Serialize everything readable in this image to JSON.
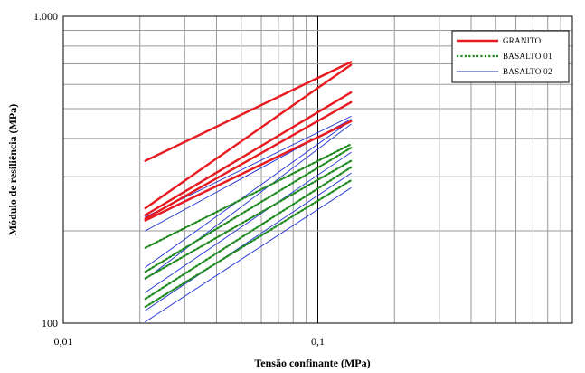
{
  "chart_data": {
    "type": "line",
    "title": "",
    "xlabel": "Tensão confinante (MPa)",
    "ylabel": "Módulo de resiliência (MPa)",
    "x_scale": "log",
    "y_scale": "log",
    "xlim": [
      0.01,
      1
    ],
    "ylim": [
      100,
      1000
    ],
    "x_ticks": [
      {
        "value": 0.01,
        "label": "0,01"
      },
      {
        "value": 0.1,
        "label": "0,1"
      }
    ],
    "y_ticks": [
      {
        "value": 100,
        "label": "100"
      },
      {
        "value": 1000,
        "label": "1.000"
      }
    ],
    "grid": true,
    "legend_position": "top-right",
    "legend": [
      {
        "name": "GRANITO",
        "color": "#e8191f",
        "style": "solid-thick"
      },
      {
        "name": "BASALTO 01",
        "color": "#1e8a1e",
        "style": "dotted"
      },
      {
        "name": "BASALTO 02",
        "color": "#1f2fd6",
        "style": "solid-thin"
      }
    ],
    "series": [
      {
        "group": "GRANITO",
        "x": [
          0.021,
          0.135
        ],
        "y": [
          338,
          710
        ]
      },
      {
        "group": "GRANITO",
        "x": [
          0.021,
          0.135
        ],
        "y": [
          237,
          695
        ]
      },
      {
        "group": "GRANITO",
        "x": [
          0.021,
          0.135
        ],
        "y": [
          225,
          565
        ]
      },
      {
        "group": "GRANITO",
        "x": [
          0.021,
          0.135
        ],
        "y": [
          219,
          525
        ]
      },
      {
        "group": "GRANITO",
        "x": [
          0.021,
          0.135
        ],
        "y": [
          216,
          455
        ]
      },
      {
        "group": "BASALTO 01",
        "x": [
          0.021,
          0.135
        ],
        "y": [
          176,
          383
        ]
      },
      {
        "group": "BASALTO 01",
        "x": [
          0.021,
          0.135
        ],
        "y": [
          147,
          373
        ]
      },
      {
        "group": "BASALTO 01",
        "x": [
          0.021,
          0.135
        ],
        "y": [
          140,
          338
        ]
      },
      {
        "group": "BASALTO 01",
        "x": [
          0.021,
          0.135
        ],
        "y": [
          120,
          322
        ]
      },
      {
        "group": "BASALTO 01",
        "x": [
          0.021,
          0.135
        ],
        "y": [
          113,
          292
        ]
      },
      {
        "group": "BASALTO 02",
        "x": [
          0.021,
          0.135
        ],
        "y": [
          222,
          472
        ]
      },
      {
        "group": "BASALTO 02",
        "x": [
          0.021,
          0.135
        ],
        "y": [
          200,
          462
        ]
      },
      {
        "group": "BASALTO 02",
        "x": [
          0.021,
          0.135
        ],
        "y": [
          152,
          458
        ]
      },
      {
        "group": "BASALTO 02",
        "x": [
          0.021,
          0.135
        ],
        "y": [
          139,
          445
        ]
      },
      {
        "group": "BASALTO 02",
        "x": [
          0.021,
          0.135
        ],
        "y": [
          126,
          360
        ]
      },
      {
        "group": "BASALTO 02",
        "x": [
          0.021,
          0.135
        ],
        "y": [
          110,
          308
        ]
      },
      {
        "group": "BASALTO 02",
        "x": [
          0.021,
          0.135
        ],
        "y": [
          101,
          276
        ]
      }
    ]
  }
}
